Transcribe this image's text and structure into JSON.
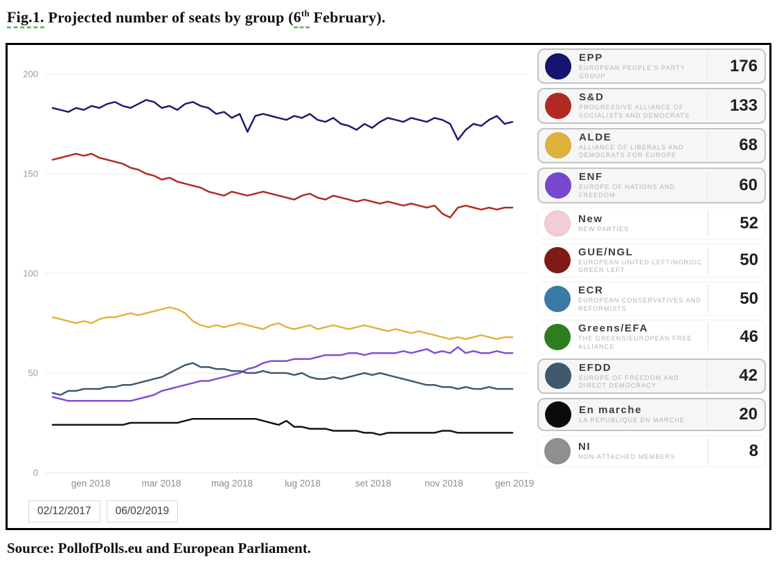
{
  "figure_title": {
    "prefix": "Fig.1.",
    "mid": " Projected number of seats by group (",
    "day": "6",
    "day_suffix": "th",
    "tail": " February)."
  },
  "source": "Source: PollofPolls.eu and European Parliament.",
  "chart_data": {
    "type": "line",
    "title": "Projected number of seats by group",
    "date_range": {
      "start": "02/12/2017",
      "end": "06/02/2019"
    },
    "x_tick_labels": [
      "gen 2018",
      "mar 2018",
      "mag 2018",
      "lug 2018",
      "set 2018",
      "nov 2018",
      "gen 2019"
    ],
    "y_ticks": [
      0,
      50,
      100,
      150,
      200
    ],
    "ylim": [
      0,
      200
    ],
    "grid": true,
    "legend_position": "right",
    "series": [
      {
        "name": "EPP",
        "color": "#1b1b70",
        "final": 176,
        "values": [
          183,
          182,
          181,
          183,
          182,
          184,
          183,
          185,
          186,
          184,
          183,
          185,
          187,
          186,
          183,
          184,
          182,
          185,
          186,
          184,
          183,
          180,
          181,
          178,
          180,
          171,
          179,
          180,
          179,
          178,
          177,
          179,
          178,
          180,
          177,
          176,
          178,
          175,
          174,
          172,
          175,
          173,
          176,
          178,
          177,
          176,
          178,
          177,
          176,
          178,
          177,
          175,
          167,
          172,
          175,
          174,
          177,
          179,
          175,
          176
        ]
      },
      {
        "name": "S&D",
        "color": "#b02a21",
        "final": 133,
        "values": [
          157,
          158,
          159,
          160,
          159,
          160,
          158,
          157,
          156,
          155,
          153,
          152,
          150,
          149,
          147,
          148,
          146,
          145,
          144,
          143,
          141,
          140,
          139,
          141,
          140,
          139,
          140,
          141,
          140,
          139,
          138,
          137,
          139,
          140,
          138,
          137,
          139,
          138,
          137,
          136,
          137,
          136,
          135,
          136,
          135,
          134,
          135,
          134,
          133,
          134,
          130,
          128,
          133,
          134,
          133,
          132,
          133,
          132,
          133,
          133
        ]
      },
      {
        "name": "ALDE",
        "color": "#e2b33c",
        "final": 68,
        "values": [
          78,
          77,
          76,
          75,
          76,
          75,
          77,
          78,
          78,
          79,
          80,
          79,
          80,
          81,
          82,
          83,
          82,
          80,
          76,
          74,
          73,
          74,
          73,
          74,
          75,
          74,
          73,
          72,
          74,
          75,
          73,
          72,
          73,
          74,
          72,
          73,
          74,
          73,
          72,
          73,
          74,
          73,
          72,
          71,
          72,
          71,
          70,
          71,
          70,
          69,
          68,
          67,
          68,
          67,
          68,
          69,
          68,
          67,
          68,
          68
        ]
      },
      {
        "name": "ENF",
        "color": "#7d4fd6",
        "final": 60,
        "values": [
          38,
          37,
          36,
          36,
          36,
          36,
          36,
          36,
          36,
          36,
          36,
          37,
          38,
          39,
          41,
          42,
          43,
          44,
          45,
          46,
          46,
          47,
          48,
          49,
          50,
          52,
          53,
          55,
          56,
          56,
          56,
          57,
          57,
          57,
          58,
          59,
          59,
          59,
          60,
          60,
          59,
          60,
          60,
          60,
          60,
          61,
          60,
          61,
          62,
          60,
          61,
          60,
          63,
          60,
          61,
          60,
          60,
          61,
          60,
          60
        ]
      },
      {
        "name": "EFDD",
        "color": "#3f5a6e",
        "final": 42,
        "values": [
          40,
          39,
          41,
          41,
          42,
          42,
          42,
          43,
          43,
          44,
          44,
          45,
          46,
          47,
          48,
          50,
          52,
          54,
          55,
          53,
          53,
          52,
          52,
          51,
          51,
          50,
          50,
          51,
          50,
          50,
          50,
          49,
          50,
          48,
          47,
          47,
          48,
          47,
          48,
          49,
          50,
          49,
          50,
          49,
          48,
          47,
          46,
          45,
          44,
          44,
          43,
          43,
          42,
          43,
          42,
          42,
          43,
          42,
          42,
          42
        ]
      },
      {
        "name": "En marche",
        "color": "#141414",
        "final": 20,
        "values": [
          24,
          24,
          24,
          24,
          24,
          24,
          24,
          24,
          24,
          24,
          25,
          25,
          25,
          25,
          25,
          25,
          25,
          26,
          27,
          27,
          27,
          27,
          27,
          27,
          27,
          27,
          27,
          26,
          25,
          24,
          26,
          23,
          23,
          22,
          22,
          22,
          21,
          21,
          21,
          21,
          20,
          20,
          19,
          20,
          20,
          20,
          20,
          20,
          20,
          20,
          21,
          21,
          20,
          20,
          20,
          20,
          20,
          20,
          20,
          20
        ]
      }
    ]
  },
  "legend": {
    "items": [
      {
        "abbr": "EPP",
        "full": "EUROPEAN PEOPLE'S PARTY GROUP",
        "seats": 176,
        "color": "#151570",
        "plotted": true
      },
      {
        "abbr": "S&D",
        "full": "PROGRESSIVE ALLIANCE OF SOCIALISTS AND DEMOCRATS",
        "seats": 133,
        "color": "#b02a21",
        "plotted": true
      },
      {
        "abbr": "ALDE",
        "full": "ALLIANCE OF LIBERALS AND DEMOCRATS FOR EUROPE",
        "seats": 68,
        "color": "#dfb23c",
        "plotted": true
      },
      {
        "abbr": "ENF",
        "full": "EUROPE OF NATIONS AND FREEDOM",
        "seats": 60,
        "color": "#7747d1",
        "plotted": true
      },
      {
        "abbr": "New",
        "full": "NEW PARTIES",
        "seats": 52,
        "color": "#f2ced4",
        "plotted": false
      },
      {
        "abbr": "GUE/NGL",
        "full": "EUROPEAN UNITED LEFT/NORDIC GREEN LEFT",
        "seats": 50,
        "color": "#7e1b16",
        "plotted": false
      },
      {
        "abbr": "ECR",
        "full": "EUROPEAN CONSERVATIVES AND REFORMISTS",
        "seats": 50,
        "color": "#3a7ba6",
        "plotted": false
      },
      {
        "abbr": "Greens/EFA",
        "full": "THE GREENS/EUROPEAN FREE ALLIANCE",
        "seats": 46,
        "color": "#2f7d21",
        "plotted": false
      },
      {
        "abbr": "EFDD",
        "full": "EUROPE OF FREEDOM AND DIRECT DEMOCRACY",
        "seats": 42,
        "color": "#40586e",
        "plotted": true
      },
      {
        "abbr": "En marche",
        "full": "LA REPUBLIQUE EN MARCHE",
        "seats": 20,
        "color": "#0b0b0b",
        "plotted": true
      },
      {
        "abbr": "NI",
        "full": "NON-ATTACHED MEMBERS",
        "seats": 8,
        "color": "#8f8f8f",
        "plotted": false
      }
    ]
  },
  "range_buttons": {
    "start_label": "02/12/2017",
    "end_label": "06/02/2019"
  }
}
